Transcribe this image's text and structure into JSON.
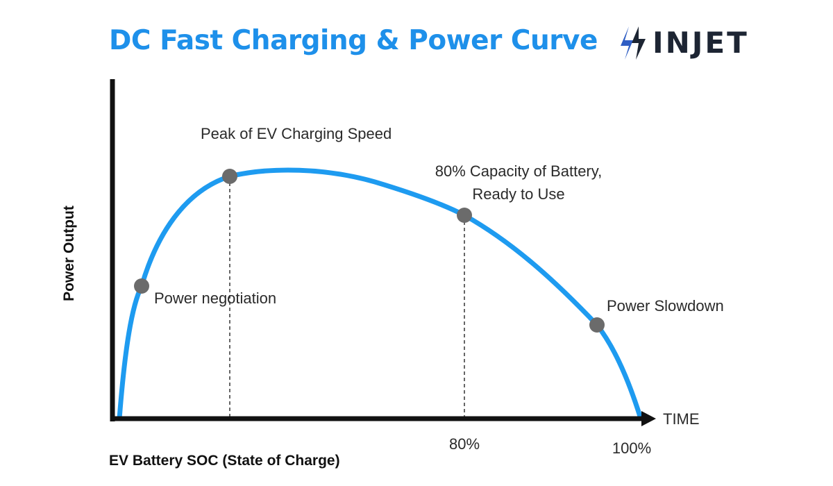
{
  "title": "DC Fast Charging & Power Curve",
  "logo": {
    "text": "INJET",
    "icon": "bolt-icon",
    "icon_colors": [
      "#2f5ec4",
      "#1d2533"
    ]
  },
  "colors": {
    "title": "#1e90ea",
    "curve": "#1e9bf0",
    "axis": "#111111",
    "marker": "#6b6b6b"
  },
  "axes": {
    "y_label": "Power Output",
    "x_end_label": "TIME",
    "x_label": "EV Battery SOC (State of Charge)",
    "x_ticks": [
      "80%",
      "100%"
    ]
  },
  "annotations": {
    "power_negotiation": "Power negotiation",
    "peak": "Peak of EV Charging Speed",
    "capacity_line1": "80% Capacity of Battery,",
    "capacity_line2": "Ready to Use",
    "slowdown": "Power Slowdown"
  }
}
